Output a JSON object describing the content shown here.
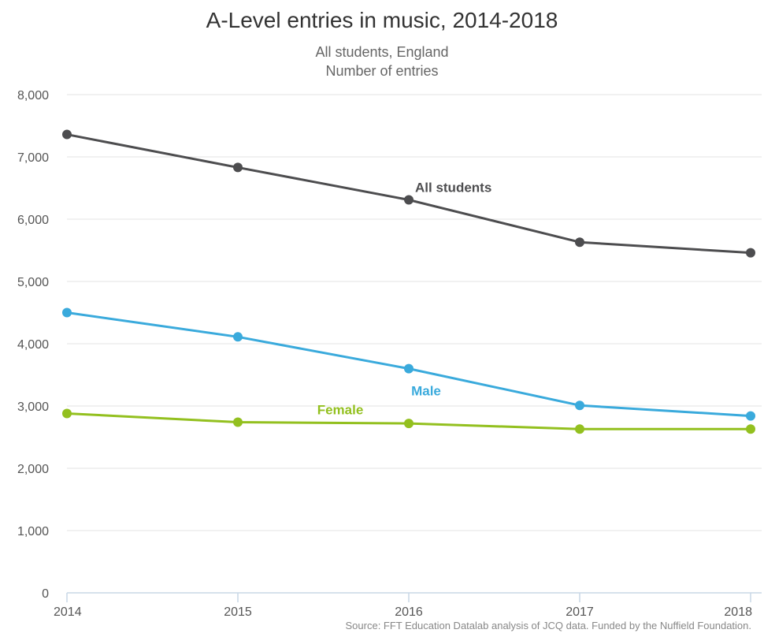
{
  "chart_data": {
    "type": "line",
    "title": "A-Level entries in music, 2014-2018",
    "subtitle_lines": [
      "All students, England",
      "Number of entries"
    ],
    "x": [
      "2014",
      "2015",
      "2016",
      "2017",
      "2018"
    ],
    "ylim": [
      0,
      8000
    ],
    "yticks": [
      "0",
      "1,000",
      "2,000",
      "3,000",
      "4,000",
      "5,000",
      "6,000",
      "7,000",
      "8,000"
    ],
    "ytick_values": [
      0,
      1000,
      2000,
      3000,
      4000,
      5000,
      6000,
      7000,
      8000
    ],
    "grid": true,
    "legend": "inline labels",
    "series": [
      {
        "name": "All students",
        "color": "#4d4d4f",
        "values": [
          7360,
          6830,
          6310,
          5630,
          5460
        ]
      },
      {
        "name": "Male",
        "color": "#3aaadc",
        "values": [
          4500,
          4110,
          3600,
          3010,
          2840
        ]
      },
      {
        "name": "Female",
        "color": "#93c01f",
        "values": [
          2880,
          2740,
          2720,
          2630,
          2630
        ]
      }
    ],
    "source": "Source: FFT Education Datalab analysis of JCQ data. Funded by the Nuffield Foundation."
  }
}
